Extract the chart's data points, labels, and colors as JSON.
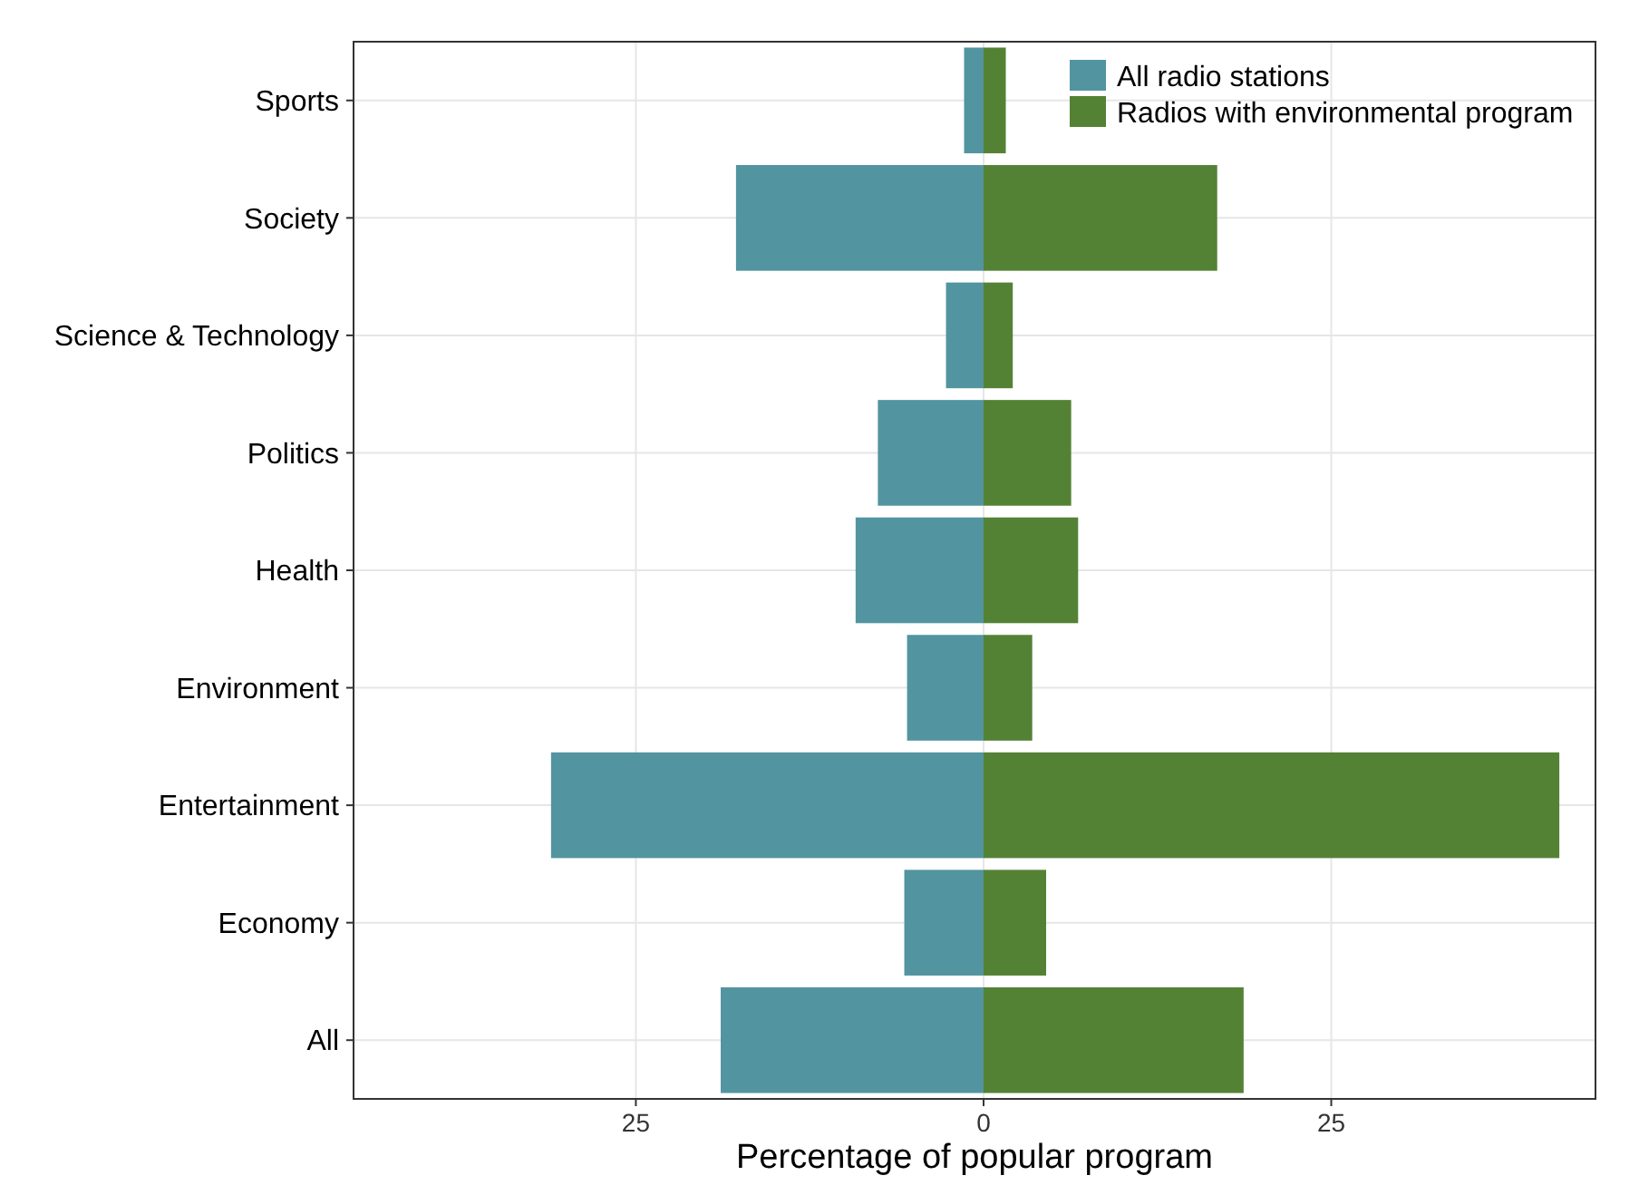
{
  "chart_data": {
    "type": "bar",
    "orientation": "horizontal",
    "xlabel": "Percentage of popular program",
    "categories": [
      "Sports",
      "Society",
      "Science & Technology",
      "Politics",
      "Health",
      "Environment",
      "Entertainment",
      "Economy",
      "All"
    ],
    "series": [
      {
        "name": "All radio stations",
        "color": "#5294a0",
        "values": [
          -1.4,
          -17.8,
          -2.7,
          -7.6,
          -9.2,
          -5.5,
          -31.1,
          -5.7,
          -18.9
        ]
      },
      {
        "name": "Radios with environmental program",
        "color": "#548235",
        "values": [
          1.6,
          16.8,
          2.1,
          6.3,
          6.8,
          3.5,
          41.4,
          4.5,
          18.7
        ]
      }
    ],
    "xlim": [
      -45.3,
      44
    ],
    "xticks": [
      {
        "value": -25,
        "label": "25"
      },
      0,
      25
    ],
    "grid": true,
    "legend": "top right",
    "stacked": true
  }
}
